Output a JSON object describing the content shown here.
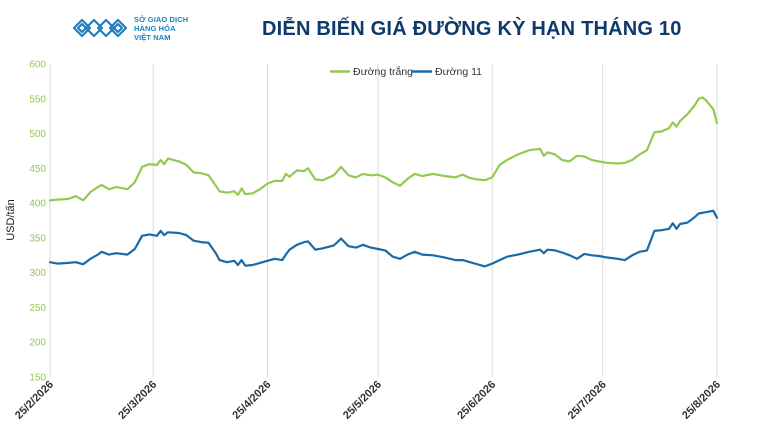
{
  "header": {
    "logo_lines": [
      "SỞ GIAO DỊCH",
      "HÀNG HÓA",
      "VIỆT NAM"
    ],
    "title": "DIỄN BIẾN GIÁ ĐƯỜNG KỲ HẠN THÁNG 10"
  },
  "colors": {
    "white_sugar": "#92c950",
    "sugar11": "#1b6aa8",
    "grid": "#d9d9d9",
    "title": "#0e3a6b",
    "logo": "#1f7fbf"
  },
  "chart_data": {
    "type": "line",
    "title": "DIỄN BIẾN GIÁ ĐƯỜNG KỲ HẠN THÁNG 10",
    "xlabel": "",
    "ylabel": "USD/tấn",
    "ylim": [
      150,
      600
    ],
    "yticks": [
      150,
      200,
      250,
      300,
      350,
      400,
      450,
      500,
      550,
      600
    ],
    "x_start": "25/2/2026",
    "x_end": "25/8/2026",
    "x_tick_labels": [
      "25/2/2026",
      "25/3/2026",
      "25/4/2026",
      "25/5/2026",
      "25/6/2026",
      "25/7/2026",
      "25/8/2026"
    ],
    "grid": "vertical-lines",
    "legend_position": "top-center",
    "series": [
      {
        "name": "Đường trắng",
        "color": "#92c950",
        "points": [
          [
            "25/2/2026",
            404
          ],
          [
            "27/2/2026",
            405
          ],
          [
            "2/3/2026",
            406
          ],
          [
            "4/3/2026",
            410
          ],
          [
            "6/3/2026",
            404
          ],
          [
            "8/3/2026",
            416
          ],
          [
            "10/3/2026",
            423
          ],
          [
            "11/3/2026",
            426
          ],
          [
            "13/3/2026",
            420
          ],
          [
            "15/3/2026",
            423
          ],
          [
            "18/3/2026",
            420
          ],
          [
            "20/3/2026",
            430
          ],
          [
            "22/3/2026",
            452
          ],
          [
            "24/3/2026",
            456
          ],
          [
            "26/3/2026",
            455
          ],
          [
            "27/3/2026",
            462
          ],
          [
            "28/3/2026",
            456
          ],
          [
            "29/3/2026",
            464
          ],
          [
            "1/4/2026",
            460
          ],
          [
            "3/4/2026",
            455
          ],
          [
            "5/4/2026",
            444
          ],
          [
            "7/4/2026",
            443
          ],
          [
            "9/4/2026",
            440
          ],
          [
            "11/4/2026",
            425
          ],
          [
            "12/4/2026",
            417
          ],
          [
            "14/4/2026",
            415
          ],
          [
            "16/4/2026",
            417
          ],
          [
            "17/4/2026",
            412
          ],
          [
            "18/4/2026",
            421
          ],
          [
            "19/4/2026",
            413
          ],
          [
            "21/4/2026",
            414
          ],
          [
            "23/4/2026",
            420
          ],
          [
            "25/4/2026",
            428
          ],
          [
            "27/4/2026",
            432
          ],
          [
            "29/4/2026",
            432
          ],
          [
            "30/4/2026",
            442
          ],
          [
            "1/5/2026",
            438
          ],
          [
            "3/5/2026",
            447
          ],
          [
            "5/5/2026",
            446
          ],
          [
            "6/5/2026",
            450
          ],
          [
            "8/5/2026",
            434
          ],
          [
            "10/5/2026",
            433
          ],
          [
            "13/5/2026",
            440
          ],
          [
            "15/5/2026",
            452
          ],
          [
            "17/5/2026",
            440
          ],
          [
            "19/5/2026",
            437
          ],
          [
            "21/5/2026",
            442
          ],
          [
            "23/5/2026",
            440
          ],
          [
            "25/5/2026",
            441
          ],
          [
            "27/5/2026",
            437
          ],
          [
            "29/5/2026",
            430
          ],
          [
            "31/5/2026",
            425
          ],
          [
            "2/6/2026",
            435
          ],
          [
            "4/6/2026",
            442
          ],
          [
            "6/6/2026",
            439
          ],
          [
            "9/6/2026",
            442
          ],
          [
            "12/6/2026",
            439
          ],
          [
            "15/6/2026",
            437
          ],
          [
            "17/6/2026",
            441
          ],
          [
            "19/6/2026",
            436
          ],
          [
            "21/6/2026",
            434
          ],
          [
            "23/6/2026",
            433
          ],
          [
            "25/6/2026",
            437
          ],
          [
            "27/6/2026",
            455
          ],
          [
            "29/6/2026",
            462
          ],
          [
            "2/7/2026",
            470
          ],
          [
            "5/7/2026",
            476
          ],
          [
            "8/7/2026",
            478
          ],
          [
            "9/7/2026",
            468
          ],
          [
            "10/7/2026",
            473
          ],
          [
            "12/7/2026",
            470
          ],
          [
            "14/7/2026",
            462
          ],
          [
            "16/7/2026",
            460
          ],
          [
            "18/7/2026",
            468
          ],
          [
            "20/7/2026",
            467
          ],
          [
            "22/7/2026",
            462
          ],
          [
            "24/7/2026",
            460
          ],
          [
            "26/7/2026",
            458
          ],
          [
            "29/7/2026",
            457
          ],
          [
            "31/7/2026",
            458
          ],
          [
            "2/8/2026",
            462
          ],
          [
            "4/8/2026",
            470
          ],
          [
            "6/8/2026",
            476
          ],
          [
            "8/8/2026",
            502
          ],
          [
            "10/8/2026",
            503
          ],
          [
            "12/8/2026",
            508
          ],
          [
            "13/8/2026",
            516
          ],
          [
            "14/8/2026",
            510
          ],
          [
            "15/8/2026",
            518
          ],
          [
            "17/8/2026",
            528
          ],
          [
            "19/8/2026",
            541
          ],
          [
            "20/8/2026",
            550
          ],
          [
            "21/8/2026",
            552
          ],
          [
            "22/8/2026",
            548
          ],
          [
            "24/8/2026",
            535
          ],
          [
            "25/8/2026",
            515
          ]
        ]
      },
      {
        "name": "Đường 11",
        "color": "#1b6aa8",
        "points": [
          [
            "25/2/2026",
            315
          ],
          [
            "27/2/2026",
            313
          ],
          [
            "2/3/2026",
            314
          ],
          [
            "4/3/2026",
            315
          ],
          [
            "6/3/2026",
            312
          ],
          [
            "8/3/2026",
            320
          ],
          [
            "10/3/2026",
            326
          ],
          [
            "11/3/2026",
            330
          ],
          [
            "13/3/2026",
            326
          ],
          [
            "15/3/2026",
            328
          ],
          [
            "18/3/2026",
            326
          ],
          [
            "20/3/2026",
            334
          ],
          [
            "22/3/2026",
            353
          ],
          [
            "24/3/2026",
            355
          ],
          [
            "26/3/2026",
            353
          ],
          [
            "27/3/2026",
            360
          ],
          [
            "28/3/2026",
            354
          ],
          [
            "29/3/2026",
            358
          ],
          [
            "1/4/2026",
            357
          ],
          [
            "3/4/2026",
            354
          ],
          [
            "5/4/2026",
            346
          ],
          [
            "7/4/2026",
            344
          ],
          [
            "9/4/2026",
            343
          ],
          [
            "11/4/2026",
            328
          ],
          [
            "12/4/2026",
            318
          ],
          [
            "14/4/2026",
            315
          ],
          [
            "16/4/2026",
            317
          ],
          [
            "17/4/2026",
            311
          ],
          [
            "18/4/2026",
            318
          ],
          [
            "19/4/2026",
            310
          ],
          [
            "21/4/2026",
            311
          ],
          [
            "23/4/2026",
            314
          ],
          [
            "25/4/2026",
            317
          ],
          [
            "27/4/2026",
            320
          ],
          [
            "29/4/2026",
            318
          ],
          [
            "30/4/2026",
            326
          ],
          [
            "1/5/2026",
            333
          ],
          [
            "3/5/2026",
            340
          ],
          [
            "5/5/2026",
            344
          ],
          [
            "6/5/2026",
            345
          ],
          [
            "8/5/2026",
            333
          ],
          [
            "10/5/2026",
            335
          ],
          [
            "13/5/2026",
            339
          ],
          [
            "15/5/2026",
            349
          ],
          [
            "17/5/2026",
            338
          ],
          [
            "19/5/2026",
            336
          ],
          [
            "21/5/2026",
            340
          ],
          [
            "23/5/2026",
            336
          ],
          [
            "25/5/2026",
            334
          ],
          [
            "27/5/2026",
            332
          ],
          [
            "29/5/2026",
            323
          ],
          [
            "31/5/2026",
            320
          ],
          [
            "2/6/2026",
            326
          ],
          [
            "4/6/2026",
            330
          ],
          [
            "6/6/2026",
            326
          ],
          [
            "9/6/2026",
            325
          ],
          [
            "12/6/2026",
            322
          ],
          [
            "15/6/2026",
            318
          ],
          [
            "17/6/2026",
            318
          ],
          [
            "19/6/2026",
            315
          ],
          [
            "21/6/2026",
            312
          ],
          [
            "23/6/2026",
            309
          ],
          [
            "25/6/2026",
            313
          ],
          [
            "27/6/2026",
            318
          ],
          [
            "29/6/2026",
            323
          ],
          [
            "2/7/2026",
            326
          ],
          [
            "5/7/2026",
            330
          ],
          [
            "8/7/2026",
            333
          ],
          [
            "9/7/2026",
            328
          ],
          [
            "10/7/2026",
            333
          ],
          [
            "12/7/2026",
            332
          ],
          [
            "14/7/2026",
            329
          ],
          [
            "16/7/2026",
            325
          ],
          [
            "18/7/2026",
            320
          ],
          [
            "20/7/2026",
            327
          ],
          [
            "22/7/2026",
            325
          ],
          [
            "24/7/2026",
            324
          ],
          [
            "26/7/2026",
            322
          ],
          [
            "29/7/2026",
            320
          ],
          [
            "31/7/2026",
            318
          ],
          [
            "2/8/2026",
            325
          ],
          [
            "4/8/2026",
            330
          ],
          [
            "6/8/2026",
            332
          ],
          [
            "8/8/2026",
            360
          ],
          [
            "10/8/2026",
            361
          ],
          [
            "12/8/2026",
            363
          ],
          [
            "13/8/2026",
            371
          ],
          [
            "14/8/2026",
            363
          ],
          [
            "15/8/2026",
            370
          ],
          [
            "17/8/2026",
            372
          ],
          [
            "19/8/2026",
            380
          ],
          [
            "20/8/2026",
            385
          ],
          [
            "21/8/2026",
            386
          ],
          [
            "22/8/2026",
            387
          ],
          [
            "24/8/2026",
            389
          ],
          [
            "25/8/2026",
            379
          ]
        ]
      }
    ]
  }
}
